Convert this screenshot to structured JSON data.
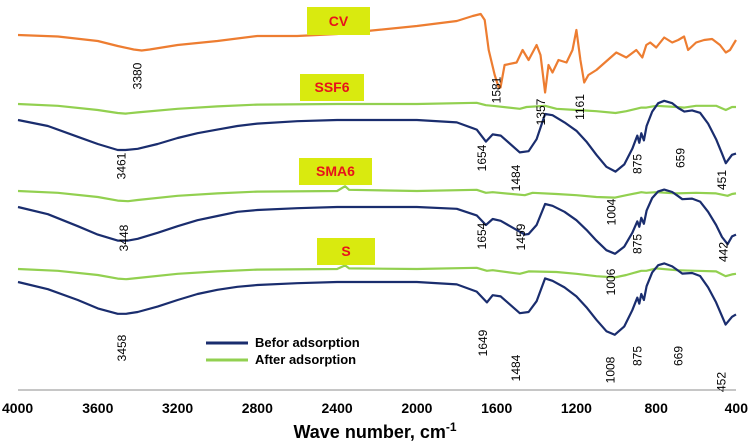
{
  "chart_data": {
    "type": "line",
    "title": "",
    "xlabel": "Wave number, cm",
    "xlabel_sup": "-1",
    "ylabel": "",
    "xlim": [
      4000,
      400
    ],
    "x_ticks": [
      "4000",
      "3600",
      "3200",
      "2800",
      "2400",
      "2000",
      "1600",
      "1200",
      "800",
      "400"
    ],
    "grid": false,
    "colors": {
      "before": "#1a2d6e",
      "after": "#92d050",
      "cv": "#ed7d31",
      "tag_bg": "#d9ea0f",
      "tag_text": "#e8121b"
    },
    "legend": {
      "position": "bottom-center",
      "entries": [
        "Befor adsorption",
        "After adsorption"
      ]
    },
    "sample_tags": [
      "CV",
      "SSF6",
      "SMA6",
      "S"
    ],
    "series": [
      {
        "name": "CV",
        "color": "cv",
        "x": [
          4000,
          3800,
          3600,
          3500,
          3420,
          3380,
          3340,
          3200,
          3000,
          2800,
          2600,
          2400,
          2200,
          2000,
          1800,
          1720,
          1680,
          1660,
          1640,
          1610,
          1590,
          1581,
          1560,
          1500,
          1470,
          1440,
          1400,
          1380,
          1357,
          1340,
          1320,
          1290,
          1250,
          1220,
          1200,
          1180,
          1161,
          1140,
          1100,
          1000,
          950,
          900,
          870,
          850,
          830,
          800,
          760,
          720,
          690,
          660,
          640,
          600,
          560,
          520,
          480,
          451,
          430,
          400
        ],
        "y": [
          0.0,
          -0.3,
          -1.2,
          -2.2,
          -2.9,
          -3.1,
          -2.9,
          -2.0,
          -1.2,
          -0.2,
          -0.2,
          0.2,
          1.0,
          1.8,
          2.8,
          3.8,
          4.2,
          3.0,
          -3.0,
          -8.0,
          -10.5,
          -10.5,
          -6.0,
          -5.5,
          -3.0,
          -5.0,
          -2.0,
          -4.0,
          -11.5,
          -6.0,
          -7.5,
          -5.0,
          -5.5,
          -3.0,
          1.0,
          -5.0,
          -9.5,
          -8.0,
          -7.0,
          -3.5,
          -4.5,
          -3.0,
          -4.5,
          -2.0,
          -1.5,
          -2.5,
          -0.5,
          -1.5,
          -1.0,
          -0.3,
          -3.0,
          -1.5,
          -1.0,
          -0.8,
          -2.0,
          -3.5,
          -3.0,
          -1.0
        ]
      },
      {
        "name": "SSF6 After adsorption",
        "color": "after",
        "x": [
          4000,
          3800,
          3600,
          3500,
          3461,
          3400,
          3200,
          3000,
          2800,
          2400,
          2000,
          1700,
          1654,
          1620,
          1484,
          1450,
          1357,
          1300,
          1200,
          1100,
          1004,
          950,
          900,
          875,
          850,
          800,
          700,
          659,
          600,
          500,
          451,
          420,
          400
        ],
        "y": [
          0,
          -0.3,
          -1.0,
          -1.5,
          -1.6,
          -1.4,
          -0.8,
          -0.4,
          -0.1,
          0,
          0,
          0.2,
          -0.2,
          -0.3,
          -0.8,
          -0.5,
          -0.3,
          -0.8,
          -1.0,
          -1.2,
          -1.5,
          -1.2,
          -0.8,
          -0.6,
          -0.6,
          -0.3,
          -0.5,
          -0.6,
          -0.3,
          -0.3,
          -1.0,
          -0.5,
          -0.5
        ]
      },
      {
        "name": "SSF6 Befor adsorption",
        "color": "before",
        "x": [
          4000,
          3850,
          3700,
          3600,
          3500,
          3461,
          3400,
          3300,
          3200,
          3100,
          3000,
          2900,
          2800,
          2600,
          2400,
          2200,
          2000,
          1800,
          1700,
          1654,
          1620,
          1580,
          1484,
          1440,
          1400,
          1357,
          1320,
          1260,
          1200,
          1150,
          1100,
          1050,
          1004,
          960,
          920,
          895,
          885,
          875,
          862,
          848,
          820,
          790,
          760,
          720,
          690,
          659,
          620,
          580,
          540,
          500,
          470,
          451,
          420,
          400
        ],
        "y": [
          0,
          -1.0,
          -2.8,
          -4.0,
          -5.0,
          -5.0,
          -4.8,
          -4.0,
          -3.0,
          -2.2,
          -1.6,
          -1.0,
          -0.6,
          -0.2,
          0,
          0,
          0,
          -0.4,
          -1.6,
          -3.6,
          -2.4,
          -2.6,
          -5.4,
          -5.2,
          -3.2,
          1.0,
          0.8,
          -0.4,
          -1.8,
          -3.6,
          -5.8,
          -7.8,
          -8.6,
          -7.4,
          -4.8,
          -2.6,
          -3.8,
          -2.2,
          -3.4,
          -1.0,
          1.4,
          2.8,
          3.2,
          2.8,
          2.0,
          1.4,
          1.6,
          1.2,
          -0.6,
          -3.2,
          -5.6,
          -7.2,
          -5.8,
          -5.6
        ]
      },
      {
        "name": "SMA6 After adsorption",
        "color": "after",
        "x": [
          4000,
          3800,
          3600,
          3500,
          3448,
          3400,
          3200,
          3000,
          2800,
          2400,
          2360,
          2340,
          2000,
          1700,
          1654,
          1620,
          1459,
          1420,
          1300,
          1200,
          1100,
          1006,
          950,
          875,
          850,
          800,
          700,
          600,
          500,
          442,
          420,
          400
        ],
        "y": [
          0,
          -0.3,
          -1.0,
          -1.6,
          -1.7,
          -1.5,
          -0.8,
          -0.4,
          -0.1,
          0,
          0.8,
          0.2,
          0,
          0.2,
          -0.3,
          -0.2,
          -0.7,
          -0.3,
          -0.5,
          -0.7,
          -1.0,
          -1.1,
          -0.7,
          -0.2,
          -0.3,
          -0.2,
          -0.4,
          -0.3,
          -0.4,
          -0.8,
          -0.5,
          -0.4
        ]
      },
      {
        "name": "SMA6 Befor adsorption",
        "color": "before",
        "x": [
          4000,
          3850,
          3700,
          3600,
          3500,
          3448,
          3400,
          3300,
          3200,
          3100,
          3000,
          2900,
          2800,
          2600,
          2400,
          2200,
          2000,
          1800,
          1700,
          1654,
          1620,
          1580,
          1459,
          1440,
          1400,
          1357,
          1320,
          1260,
          1200,
          1150,
          1100,
          1050,
          1006,
          960,
          920,
          895,
          885,
          875,
          862,
          848,
          820,
          790,
          760,
          720,
          690,
          669,
          620,
          580,
          540,
          500,
          470,
          442,
          420,
          400
        ],
        "y": [
          0,
          -1.2,
          -3.2,
          -4.6,
          -5.6,
          -5.6,
          -5.3,
          -4.3,
          -3.2,
          -2.2,
          -1.5,
          -0.8,
          -0.5,
          -0.2,
          0,
          0,
          0,
          -0.3,
          -1.4,
          -3.0,
          -2.0,
          -2.3,
          -4.6,
          -4.5,
          -3.0,
          0.5,
          0.2,
          -0.8,
          -2.2,
          -3.8,
          -5.6,
          -7.2,
          -7.8,
          -6.6,
          -4.3,
          -2.4,
          -3.3,
          -1.8,
          -2.8,
          -0.6,
          1.5,
          2.6,
          2.9,
          2.5,
          1.8,
          1.3,
          1.4,
          0.9,
          -0.8,
          -3.0,
          -5.0,
          -6.2,
          -4.9,
          -4.6
        ]
      },
      {
        "name": "S After adsorption",
        "color": "after",
        "x": [
          4000,
          3800,
          3600,
          3500,
          3458,
          3400,
          3200,
          3000,
          2800,
          2400,
          2360,
          2340,
          2000,
          1700,
          1649,
          1620,
          1484,
          1440,
          1300,
          1200,
          1100,
          1008,
          950,
          875,
          850,
          800,
          700,
          600,
          500,
          452,
          420,
          400
        ],
        "y": [
          0,
          -0.3,
          -1.0,
          -1.6,
          -1.7,
          -1.5,
          -0.8,
          -0.4,
          -0.1,
          0,
          0.6,
          0.1,
          0,
          0.2,
          -0.3,
          -0.2,
          -0.8,
          -0.4,
          -0.5,
          -0.8,
          -1.2,
          -1.4,
          -1.0,
          -0.3,
          -0.3,
          0.1,
          -0.2,
          -0.3,
          -0.4,
          -1.2,
          -0.9,
          -0.8
        ]
      },
      {
        "name": "S Befor adsorption",
        "color": "before",
        "x": [
          4000,
          3850,
          3700,
          3600,
          3500,
          3458,
          3400,
          3300,
          3200,
          3100,
          3000,
          2900,
          2800,
          2600,
          2400,
          2200,
          2000,
          1800,
          1700,
          1649,
          1620,
          1580,
          1484,
          1440,
          1400,
          1357,
          1320,
          1260,
          1200,
          1150,
          1100,
          1050,
          1008,
          960,
          920,
          895,
          885,
          875,
          862,
          848,
          820,
          790,
          760,
          720,
          690,
          669,
          620,
          580,
          540,
          500,
          470,
          452,
          420,
          400
        ],
        "y": [
          0,
          -1.2,
          -3.0,
          -4.4,
          -5.3,
          -5.3,
          -5.0,
          -4.1,
          -3.0,
          -2.0,
          -1.3,
          -0.8,
          -0.5,
          -0.2,
          0,
          0,
          0,
          -0.4,
          -1.6,
          -3.4,
          -2.2,
          -2.4,
          -5.2,
          -5.0,
          -3.2,
          0.6,
          0.2,
          -0.9,
          -2.4,
          -4.2,
          -6.3,
          -8.2,
          -8.8,
          -7.4,
          -4.7,
          -2.6,
          -3.6,
          -2.0,
          -3.0,
          -0.7,
          1.6,
          2.8,
          3.1,
          2.6,
          1.9,
          1.4,
          1.5,
          1.0,
          -0.9,
          -3.4,
          -5.7,
          -7.1,
          -5.8,
          -5.4
        ]
      }
    ],
    "annotations": [
      {
        "text": "3380",
        "x": 3380
      },
      {
        "text": "1581",
        "x": 1581
      },
      {
        "text": "1357",
        "x": 1357
      },
      {
        "text": "1161",
        "x": 1161
      },
      {
        "text": "3461",
        "x": 3461
      },
      {
        "text": "1654",
        "x": 1654
      },
      {
        "text": "1484",
        "x": 1484
      },
      {
        "text": "1004",
        "x": 1004
      },
      {
        "text": "875",
        "x": 875
      },
      {
        "text": "659",
        "x": 659
      },
      {
        "text": "451",
        "x": 451
      },
      {
        "text": "3448",
        "x": 3448
      },
      {
        "text": "1654",
        "x": 1654
      },
      {
        "text": "1459",
        "x": 1459
      },
      {
        "text": "1006",
        "x": 1006
      },
      {
        "text": "875",
        "x": 875
      },
      {
        "text": "442",
        "x": 442
      },
      {
        "text": "3458",
        "x": 3458
      },
      {
        "text": "1649",
        "x": 1649
      },
      {
        "text": "1484",
        "x": 1484
      },
      {
        "text": "1008",
        "x": 1008
      },
      {
        "text": "875",
        "x": 875
      },
      {
        "text": "669",
        "x": 669
      },
      {
        "text": "452",
        "x": 452
      }
    ]
  }
}
